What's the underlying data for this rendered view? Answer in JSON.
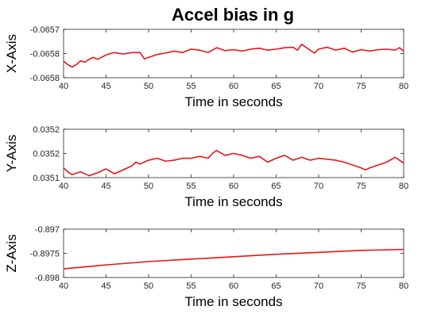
{
  "title": "Accel bias in g",
  "colors": {
    "series": "#e8141a",
    "axis": "#262626",
    "background": "#ffffff"
  },
  "chart_data": [
    {
      "type": "line",
      "ylabel": "X-Axis",
      "xlabel": "Time in seconds",
      "xlim": [
        40,
        80
      ],
      "ylim": [
        -0.0658,
        -0.0657
      ],
      "xticks": [
        40,
        45,
        50,
        55,
        60,
        65,
        70,
        75,
        80
      ],
      "xtick_labels": [
        "40",
        "45",
        "50",
        "55",
        "60",
        "65",
        "70",
        "75",
        "80"
      ],
      "yticks": [
        -0.0658,
        -0.06575,
        -0.0657
      ],
      "ytick_labels": [
        "-0.0658",
        "-0.0658",
        "-0.0657"
      ],
      "series": [
        {
          "name": "X-Axis",
          "x": [
            40,
            40.5,
            41,
            41.5,
            42,
            42.5,
            43,
            43.5,
            44,
            45,
            45.5,
            46,
            47,
            48,
            49,
            49.5,
            50,
            51,
            52,
            53,
            54,
            55,
            56,
            57,
            58,
            59,
            60,
            61,
            62,
            63,
            64,
            65,
            66,
            67,
            67.5,
            68,
            69,
            69.5,
            70,
            71,
            72,
            73,
            74,
            75,
            76,
            77,
            78,
            79,
            79.5,
            80
          ],
          "y": [
            -0.065766,
            -0.065773,
            -0.065778,
            -0.065773,
            -0.065765,
            -0.065768,
            -0.065762,
            -0.065758,
            -0.065762,
            -0.065753,
            -0.06575,
            -0.065748,
            -0.065751,
            -0.065748,
            -0.065748,
            -0.065761,
            -0.065758,
            -0.065752,
            -0.065749,
            -0.065745,
            -0.065748,
            -0.065741,
            -0.065743,
            -0.065748,
            -0.065738,
            -0.065744,
            -0.065742,
            -0.065745,
            -0.065741,
            -0.065739,
            -0.065743,
            -0.065741,
            -0.065738,
            -0.065737,
            -0.065743,
            -0.065731,
            -0.065743,
            -0.065749,
            -0.065741,
            -0.065737,
            -0.065743,
            -0.065739,
            -0.065747,
            -0.065742,
            -0.065745,
            -0.065742,
            -0.065741,
            -0.065743,
            -0.065738,
            -0.065745
          ]
        }
      ]
    },
    {
      "type": "line",
      "ylabel": "Y-Axis",
      "xlabel": "Time in seconds",
      "xlim": [
        40,
        80
      ],
      "ylim": [
        0.03515,
        0.0352
      ],
      "xticks": [
        40,
        45,
        50,
        55,
        60,
        65,
        70,
        75,
        80
      ],
      "xtick_labels": [
        "40",
        "45",
        "50",
        "55",
        "60",
        "65",
        "70",
        "75",
        "80"
      ],
      "yticks": [
        0.03515,
        0.035175,
        0.0352
      ],
      "ytick_labels": [
        "0.0351",
        "0.0352",
        "0.0352"
      ],
      "series": [
        {
          "name": "Y-Axis",
          "x": [
            40,
            40.5,
            41,
            42,
            43,
            44,
            45,
            46,
            47,
            48,
            48.5,
            49,
            50,
            51,
            52,
            53,
            54,
            55,
            56,
            57,
            57.5,
            58,
            59,
            60,
            61,
            62,
            63,
            64,
            65,
            66,
            67,
            68,
            69,
            70,
            71,
            72,
            73,
            74,
            75,
            75.5,
            76,
            77,
            78,
            79,
            80
          ],
          "y": [
            0.03516,
            0.035156,
            0.035153,
            0.035156,
            0.035152,
            0.035155,
            0.035159,
            0.035154,
            0.035158,
            0.035162,
            0.035166,
            0.035164,
            0.035168,
            0.03517,
            0.035167,
            0.035168,
            0.03517,
            0.03517,
            0.035172,
            0.03517,
            0.035175,
            0.035178,
            0.035173,
            0.035175,
            0.035173,
            0.03517,
            0.035172,
            0.035166,
            0.03517,
            0.035173,
            0.035168,
            0.035171,
            0.035168,
            0.03517,
            0.035169,
            0.035168,
            0.035166,
            0.035163,
            0.03516,
            0.035158,
            0.03516,
            0.035163,
            0.035166,
            0.035171,
            0.035165
          ]
        }
      ]
    },
    {
      "type": "line",
      "ylabel": "Z-Axis",
      "xlabel": "Time in seconds",
      "xlim": [
        40,
        80
      ],
      "ylim": [
        -0.898,
        -0.897
      ],
      "xticks": [
        40,
        45,
        50,
        55,
        60,
        65,
        70,
        75,
        80
      ],
      "xtick_labels": [
        "40",
        "45",
        "50",
        "55",
        "60",
        "65",
        "70",
        "75",
        "80"
      ],
      "yticks": [
        -0.898,
        -0.8975,
        -0.897
      ],
      "ytick_labels": [
        "-0.898",
        "-0.8975",
        "-0.897"
      ],
      "series": [
        {
          "name": "Z-Axis",
          "x": [
            40,
            45,
            50,
            55,
            60,
            65,
            70,
            75,
            80
          ],
          "y": [
            -0.89782,
            -0.89774,
            -0.89767,
            -0.89762,
            -0.89757,
            -0.89752,
            -0.89748,
            -0.89744,
            -0.89742
          ]
        }
      ]
    }
  ]
}
